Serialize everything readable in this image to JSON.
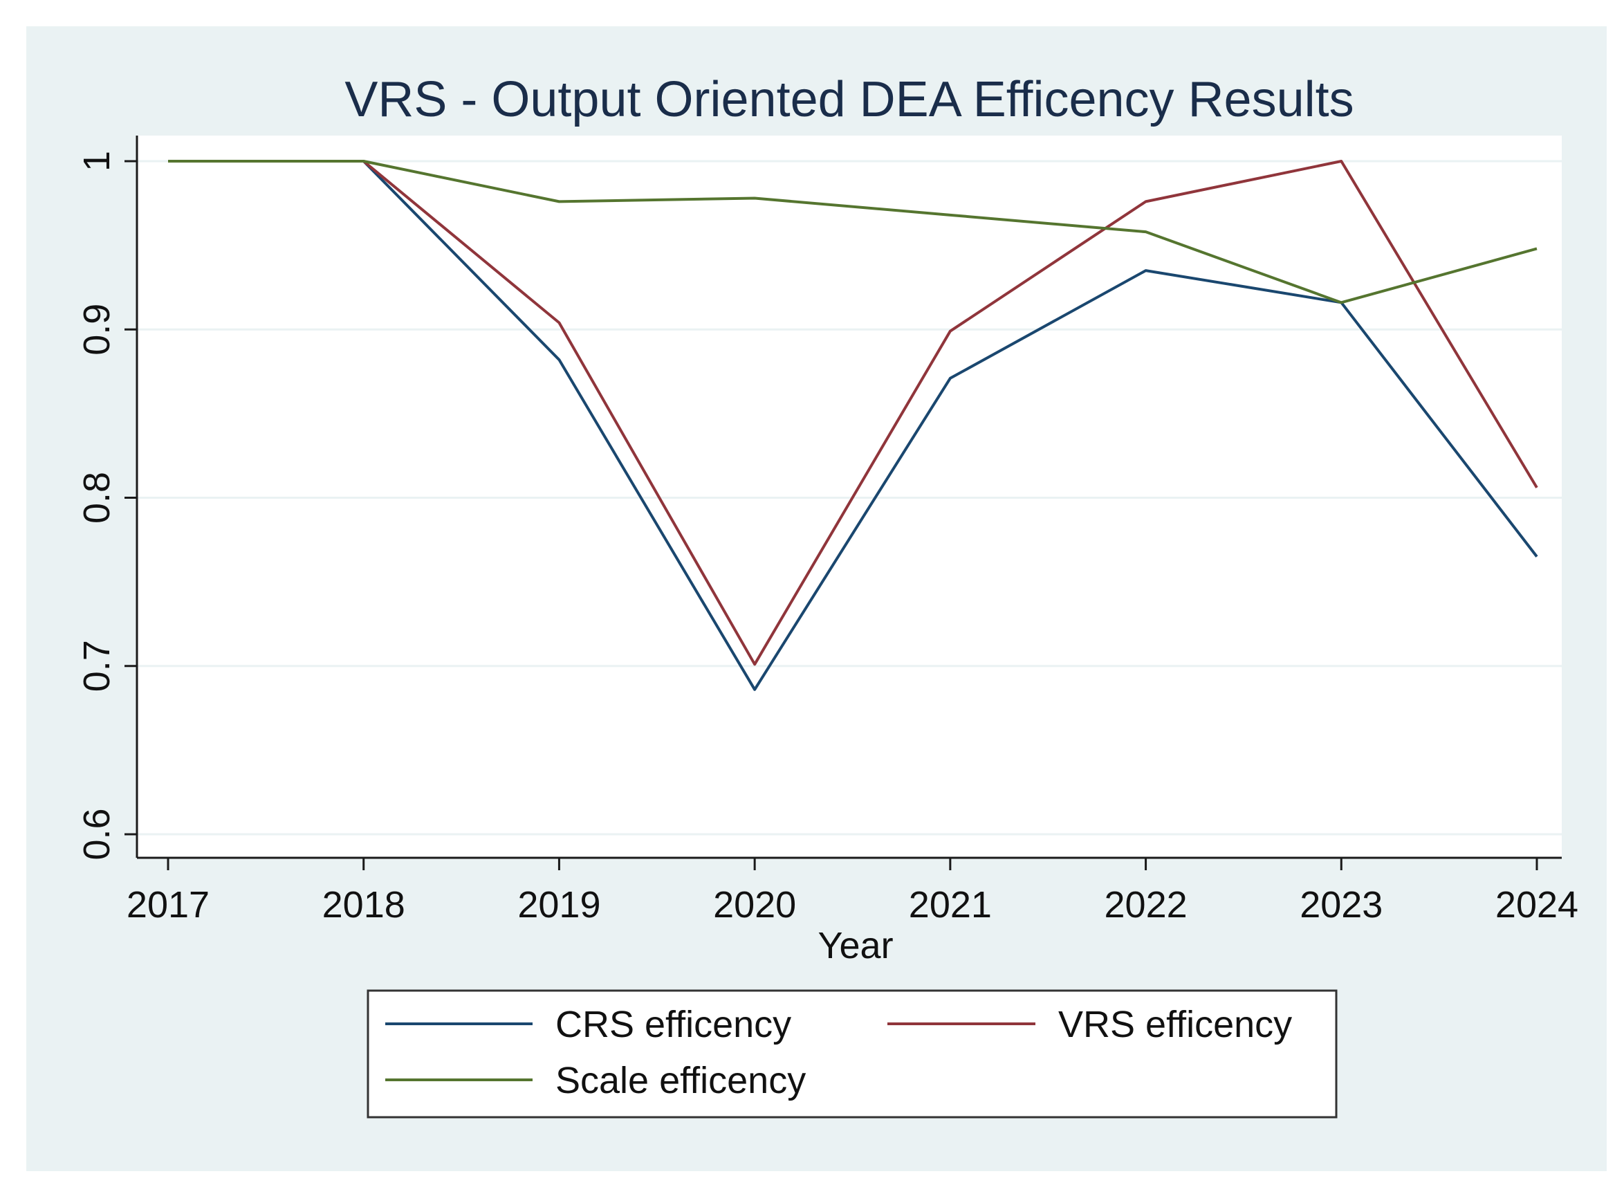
{
  "colors": {
    "figure_background": "#eaf2f3",
    "plot_background": "#ffffff",
    "gridline": "#eaf2f3",
    "axis": "#1a1a1a",
    "title": "#1a2d4a",
    "text": "#111111",
    "legend_border": "#333333"
  },
  "chart_data": {
    "type": "line",
    "title": "VRS - Output Oriented DEA Efficency Results",
    "xlabel": "Year",
    "ylabel": "",
    "x": [
      2017,
      2018,
      2019,
      2020,
      2021,
      2022,
      2023,
      2024
    ],
    "x_tick_labels": [
      "2017",
      "2018",
      "2019",
      "2020",
      "2021",
      "2022",
      "2023",
      "2024"
    ],
    "xlim": [
      2017,
      2024
    ],
    "ylim": [
      0.6,
      1.0
    ],
    "y_ticks": [
      0.6,
      0.7,
      0.8,
      0.9,
      1.0
    ],
    "y_tick_labels": [
      "0.6",
      "0.7",
      "0.8",
      "0.9",
      "1"
    ],
    "grid": true,
    "legend_position": "bottom",
    "series": [
      {
        "name": "CRS efficency",
        "color": "#1a476f",
        "values": [
          1.0,
          1.0,
          0.882,
          0.686,
          0.871,
          0.935,
          0.916,
          0.765
        ]
      },
      {
        "name": "VRS efficency",
        "color": "#90353b",
        "values": [
          1.0,
          1.0,
          0.904,
          0.701,
          0.899,
          0.976,
          1.0,
          0.806
        ]
      },
      {
        "name": "Scale efficency",
        "color": "#55752f",
        "values": [
          1.0,
          1.0,
          0.976,
          0.978,
          0.968,
          0.958,
          0.916,
          0.948
        ]
      }
    ]
  }
}
